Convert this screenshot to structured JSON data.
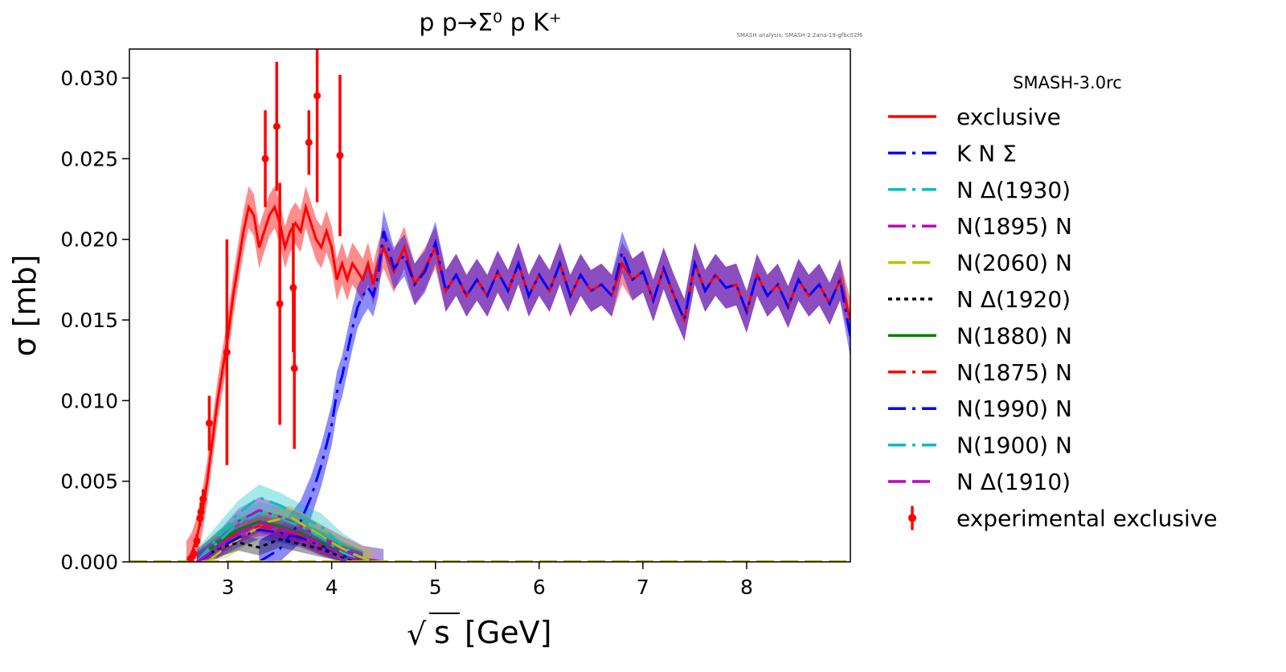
{
  "chart_data": {
    "type": "line",
    "title": "p p→Σ⁰ p K⁺",
    "watermark": "SMASH analysis: SMASH-2.2ana-19-gfbc02f6",
    "xlabel": "√s [GeV]",
    "xlabel_radical": "√",
    "xlabel_var": "s",
    "xlabel_unit": "[GeV]",
    "ylabel": "σ [mb]",
    "xlim": [
      2.05,
      9.0
    ],
    "ylim": [
      0,
      0.0318
    ],
    "xticks": [
      3,
      4,
      5,
      6,
      7,
      8
    ],
    "xtick_labels": [
      "3",
      "4",
      "5",
      "6",
      "7",
      "8"
    ],
    "yticks": [
      0,
      0.005,
      0.01,
      0.015,
      0.02,
      0.025,
      0.03
    ],
    "ytick_labels": [
      "0.000",
      "0.005",
      "0.010",
      "0.015",
      "0.020",
      "0.025",
      "0.030"
    ],
    "legend_title": "SMASH-3.0rc",
    "legend_position": "right, outside plot",
    "grid": false,
    "series": [
      {
        "name": "exclusive",
        "color": "#ff0000",
        "dash": "solid",
        "x": [
          2.6,
          2.65,
          2.7,
          2.75,
          2.8,
          2.85,
          2.9,
          2.95,
          3.0,
          3.05,
          3.1,
          3.15,
          3.2,
          3.25,
          3.3,
          3.35,
          3.4,
          3.45,
          3.5,
          3.55,
          3.6,
          3.65,
          3.7,
          3.75,
          3.8,
          3.85,
          3.9,
          3.95,
          4.0,
          4.05,
          4.1,
          4.15,
          4.2,
          4.25,
          4.3,
          4.35,
          4.4,
          4.45,
          4.5,
          4.6,
          4.7,
          4.8,
          4.9,
          5.0,
          5.1,
          5.2,
          5.3,
          5.4,
          5.5,
          5.6,
          5.7,
          5.8,
          5.9,
          6.0,
          6.1,
          6.2,
          6.3,
          6.4,
          6.5,
          6.6,
          6.7,
          6.8,
          6.9,
          7.0,
          7.1,
          7.2,
          7.3,
          7.4,
          7.5,
          7.6,
          7.7,
          7.8,
          7.9,
          8.0,
          8.1,
          8.2,
          8.3,
          8.4,
          8.5,
          8.6,
          8.7,
          8.8,
          8.9,
          9.0
        ],
        "y": [
          0.0,
          0.0005,
          0.0015,
          0.003,
          0.005,
          0.0075,
          0.01,
          0.012,
          0.014,
          0.0165,
          0.0185,
          0.0205,
          0.022,
          0.0215,
          0.0195,
          0.0205,
          0.0215,
          0.022,
          0.021,
          0.0195,
          0.0205,
          0.021,
          0.0205,
          0.022,
          0.021,
          0.02,
          0.0195,
          0.0205,
          0.0195,
          0.0175,
          0.0185,
          0.0175,
          0.0185,
          0.018,
          0.0175,
          0.0185,
          0.0172,
          0.0185,
          0.0195,
          0.018,
          0.0195,
          0.0172,
          0.0182,
          0.0195,
          0.0168,
          0.0178,
          0.0165,
          0.0175,
          0.0165,
          0.018,
          0.0168,
          0.0185,
          0.0165,
          0.0178,
          0.0168,
          0.0185,
          0.0165,
          0.0178,
          0.0168,
          0.0172,
          0.0165,
          0.0185,
          0.0175,
          0.018,
          0.0162,
          0.0182,
          0.0165,
          0.015,
          0.0185,
          0.0168,
          0.0178,
          0.017,
          0.0172,
          0.0155,
          0.0178,
          0.0165,
          0.0172,
          0.0158,
          0.0175,
          0.0165,
          0.0172,
          0.016,
          0.0175,
          0.015
        ],
        "band": 0.0013
      },
      {
        "name": "K N Σ",
        "color": "#0000ff",
        "dash": "dashdot",
        "x": [
          3.3,
          3.5,
          3.7,
          3.8,
          3.9,
          4.0,
          4.05,
          4.1,
          4.15,
          4.2,
          4.25,
          4.3,
          4.35,
          4.4,
          4.45,
          4.5,
          4.6,
          4.7,
          4.8,
          4.9,
          5.0,
          5.1,
          5.2,
          5.3,
          5.4,
          5.5,
          5.6,
          5.7,
          5.8,
          5.9,
          6.0,
          6.1,
          6.2,
          6.3,
          6.4,
          6.5,
          6.6,
          6.7,
          6.8,
          6.9,
          7.0,
          7.1,
          7.2,
          7.3,
          7.4,
          7.5,
          7.6,
          7.7,
          7.8,
          7.9,
          8.0,
          8.1,
          8.2,
          8.3,
          8.4,
          8.5,
          8.6,
          8.7,
          8.8,
          8.9,
          9.0
        ],
        "y": [
          0.0,
          0.0008,
          0.0025,
          0.004,
          0.006,
          0.0085,
          0.0105,
          0.0115,
          0.013,
          0.0145,
          0.0158,
          0.0165,
          0.017,
          0.0165,
          0.0178,
          0.0205,
          0.0182,
          0.019,
          0.0172,
          0.018,
          0.0198,
          0.0168,
          0.0178,
          0.0165,
          0.0175,
          0.0165,
          0.018,
          0.0168,
          0.0185,
          0.0165,
          0.0178,
          0.0168,
          0.0185,
          0.0165,
          0.0178,
          0.0168,
          0.0172,
          0.0165,
          0.0192,
          0.0175,
          0.018,
          0.0162,
          0.0182,
          0.0165,
          0.015,
          0.0185,
          0.0168,
          0.0178,
          0.017,
          0.0172,
          0.0155,
          0.0178,
          0.0165,
          0.0172,
          0.0158,
          0.0175,
          0.0165,
          0.0172,
          0.016,
          0.0175,
          0.014
        ],
        "band": 0.0013
      },
      {
        "name": "N Δ(1930)",
        "color": "#00bfbf",
        "dash": "dashdot",
        "x": [
          2.7,
          2.9,
          3.1,
          3.3,
          3.5,
          3.7,
          3.9,
          4.1,
          4.3,
          4.5
        ],
        "y": [
          0,
          0.0015,
          0.003,
          0.004,
          0.0035,
          0.0028,
          0.0022,
          0.001,
          0.0002,
          0
        ],
        "band": 0.0008
      },
      {
        "name": "N(1895) N",
        "color": "#bf00bf",
        "dash": "dashdot",
        "x": [
          2.7,
          2.9,
          3.1,
          3.3,
          3.5,
          3.7,
          3.9,
          4.1,
          4.3,
          4.5
        ],
        "y": [
          0,
          0.001,
          0.0025,
          0.0032,
          0.0028,
          0.0022,
          0.0015,
          0.0008,
          0.0002,
          0
        ],
        "band": 0.0008
      },
      {
        "name": "N(2060) N",
        "color": "#bfbf00",
        "dash": "dashed",
        "x": [
          2.8,
          3.0,
          3.2,
          3.4,
          3.6,
          3.8,
          4.0,
          4.2,
          4.4
        ],
        "y": [
          0,
          0.001,
          0.0018,
          0.0025,
          0.0028,
          0.002,
          0.0012,
          0.0005,
          0
        ],
        "band": 0.0007
      },
      {
        "name": "N Δ(1920)",
        "color": "#000000",
        "dash": "dotted",
        "x": [
          2.7,
          2.9,
          3.1,
          3.3,
          3.5,
          3.7,
          3.9,
          4.1,
          4.3
        ],
        "y": [
          0,
          0.0008,
          0.0012,
          0.0009,
          0.0014,
          0.0011,
          0.0008,
          0.0003,
          0
        ],
        "band": 0.0005
      },
      {
        "name": "N(1880) N",
        "color": "#008000",
        "dash": "solid",
        "x": [
          2.7,
          2.9,
          3.1,
          3.3,
          3.5,
          3.7,
          3.9,
          4.1,
          4.3
        ],
        "y": [
          0,
          0.0012,
          0.002,
          0.0025,
          0.0022,
          0.0018,
          0.0012,
          0.0005,
          0
        ],
        "band": 0.0007
      },
      {
        "name": "N(1875) N",
        "color": "#ff0000",
        "dash": "dashdot",
        "x": [
          2.7,
          2.9,
          3.1,
          3.3,
          3.5,
          3.7,
          3.9,
          4.1,
          4.3
        ],
        "y": [
          0,
          0.001,
          0.0018,
          0.0022,
          0.002,
          0.0016,
          0.001,
          0.0004,
          0
        ],
        "band": 0.0006
      },
      {
        "name": "N(1990) N",
        "color": "#0000ff",
        "dash": "dashdot",
        "x": [
          2.7,
          2.9,
          3.1,
          3.3,
          3.5,
          3.7,
          3.9,
          4.1,
          4.3
        ],
        "y": [
          0,
          0.0008,
          0.0015,
          0.002,
          0.0018,
          0.0015,
          0.001,
          0.0004,
          0
        ],
        "band": 0.0006
      },
      {
        "name": "N(1900) N",
        "color": "#00bfbf",
        "dash": "dashdot",
        "x": [
          2.7,
          2.9,
          3.1,
          3.3,
          3.5,
          3.7,
          3.9,
          4.1,
          4.3
        ],
        "y": [
          0,
          0.0012,
          0.0024,
          0.003,
          0.0027,
          0.0022,
          0.0015,
          0.0006,
          0
        ],
        "band": 0.0007
      },
      {
        "name": "N Δ(1910)",
        "color": "#bf00bf",
        "dash": "dashed",
        "x": [
          2.7,
          2.9,
          3.1,
          3.3,
          3.5,
          3.7,
          3.9,
          4.1,
          4.3
        ],
        "y": [
          0,
          0.0009,
          0.0018,
          0.0024,
          0.0021,
          0.0017,
          0.0011,
          0.0004,
          0
        ],
        "band": 0.0006
      }
    ],
    "experimental": {
      "name": "experimental exclusive",
      "color": "#ff0000",
      "points": [
        {
          "x": 2.64,
          "y": 0.0002,
          "err": 0.0002
        },
        {
          "x": 2.67,
          "y": 0.0005,
          "err": 0.0003
        },
        {
          "x": 2.7,
          "y": 0.0013,
          "err": 0.0004
        },
        {
          "x": 2.73,
          "y": 0.0027,
          "err": 0.0005
        },
        {
          "x": 2.74,
          "y": 0.0031,
          "err": 0.0006
        },
        {
          "x": 2.76,
          "y": 0.0039,
          "err": 0.0006
        },
        {
          "x": 2.82,
          "y": 0.0086,
          "err": 0.0017
        },
        {
          "x": 2.99,
          "y": 0.013,
          "err": 0.007
        },
        {
          "x": 3.36,
          "y": 0.025,
          "err": 0.003
        },
        {
          "x": 3.47,
          "y": 0.027,
          "err": 0.004
        },
        {
          "x": 3.5,
          "y": 0.016,
          "err": 0.0075
        },
        {
          "x": 3.63,
          "y": 0.017,
          "err": 0.004
        },
        {
          "x": 3.64,
          "y": 0.012,
          "err": 0.005
        },
        {
          "x": 3.78,
          "y": 0.026,
          "err": 0.002
        },
        {
          "x": 3.86,
          "y": 0.0289,
          "err": 0.0066
        },
        {
          "x": 4.08,
          "y": 0.0252,
          "err": 0.005
        }
      ]
    }
  }
}
